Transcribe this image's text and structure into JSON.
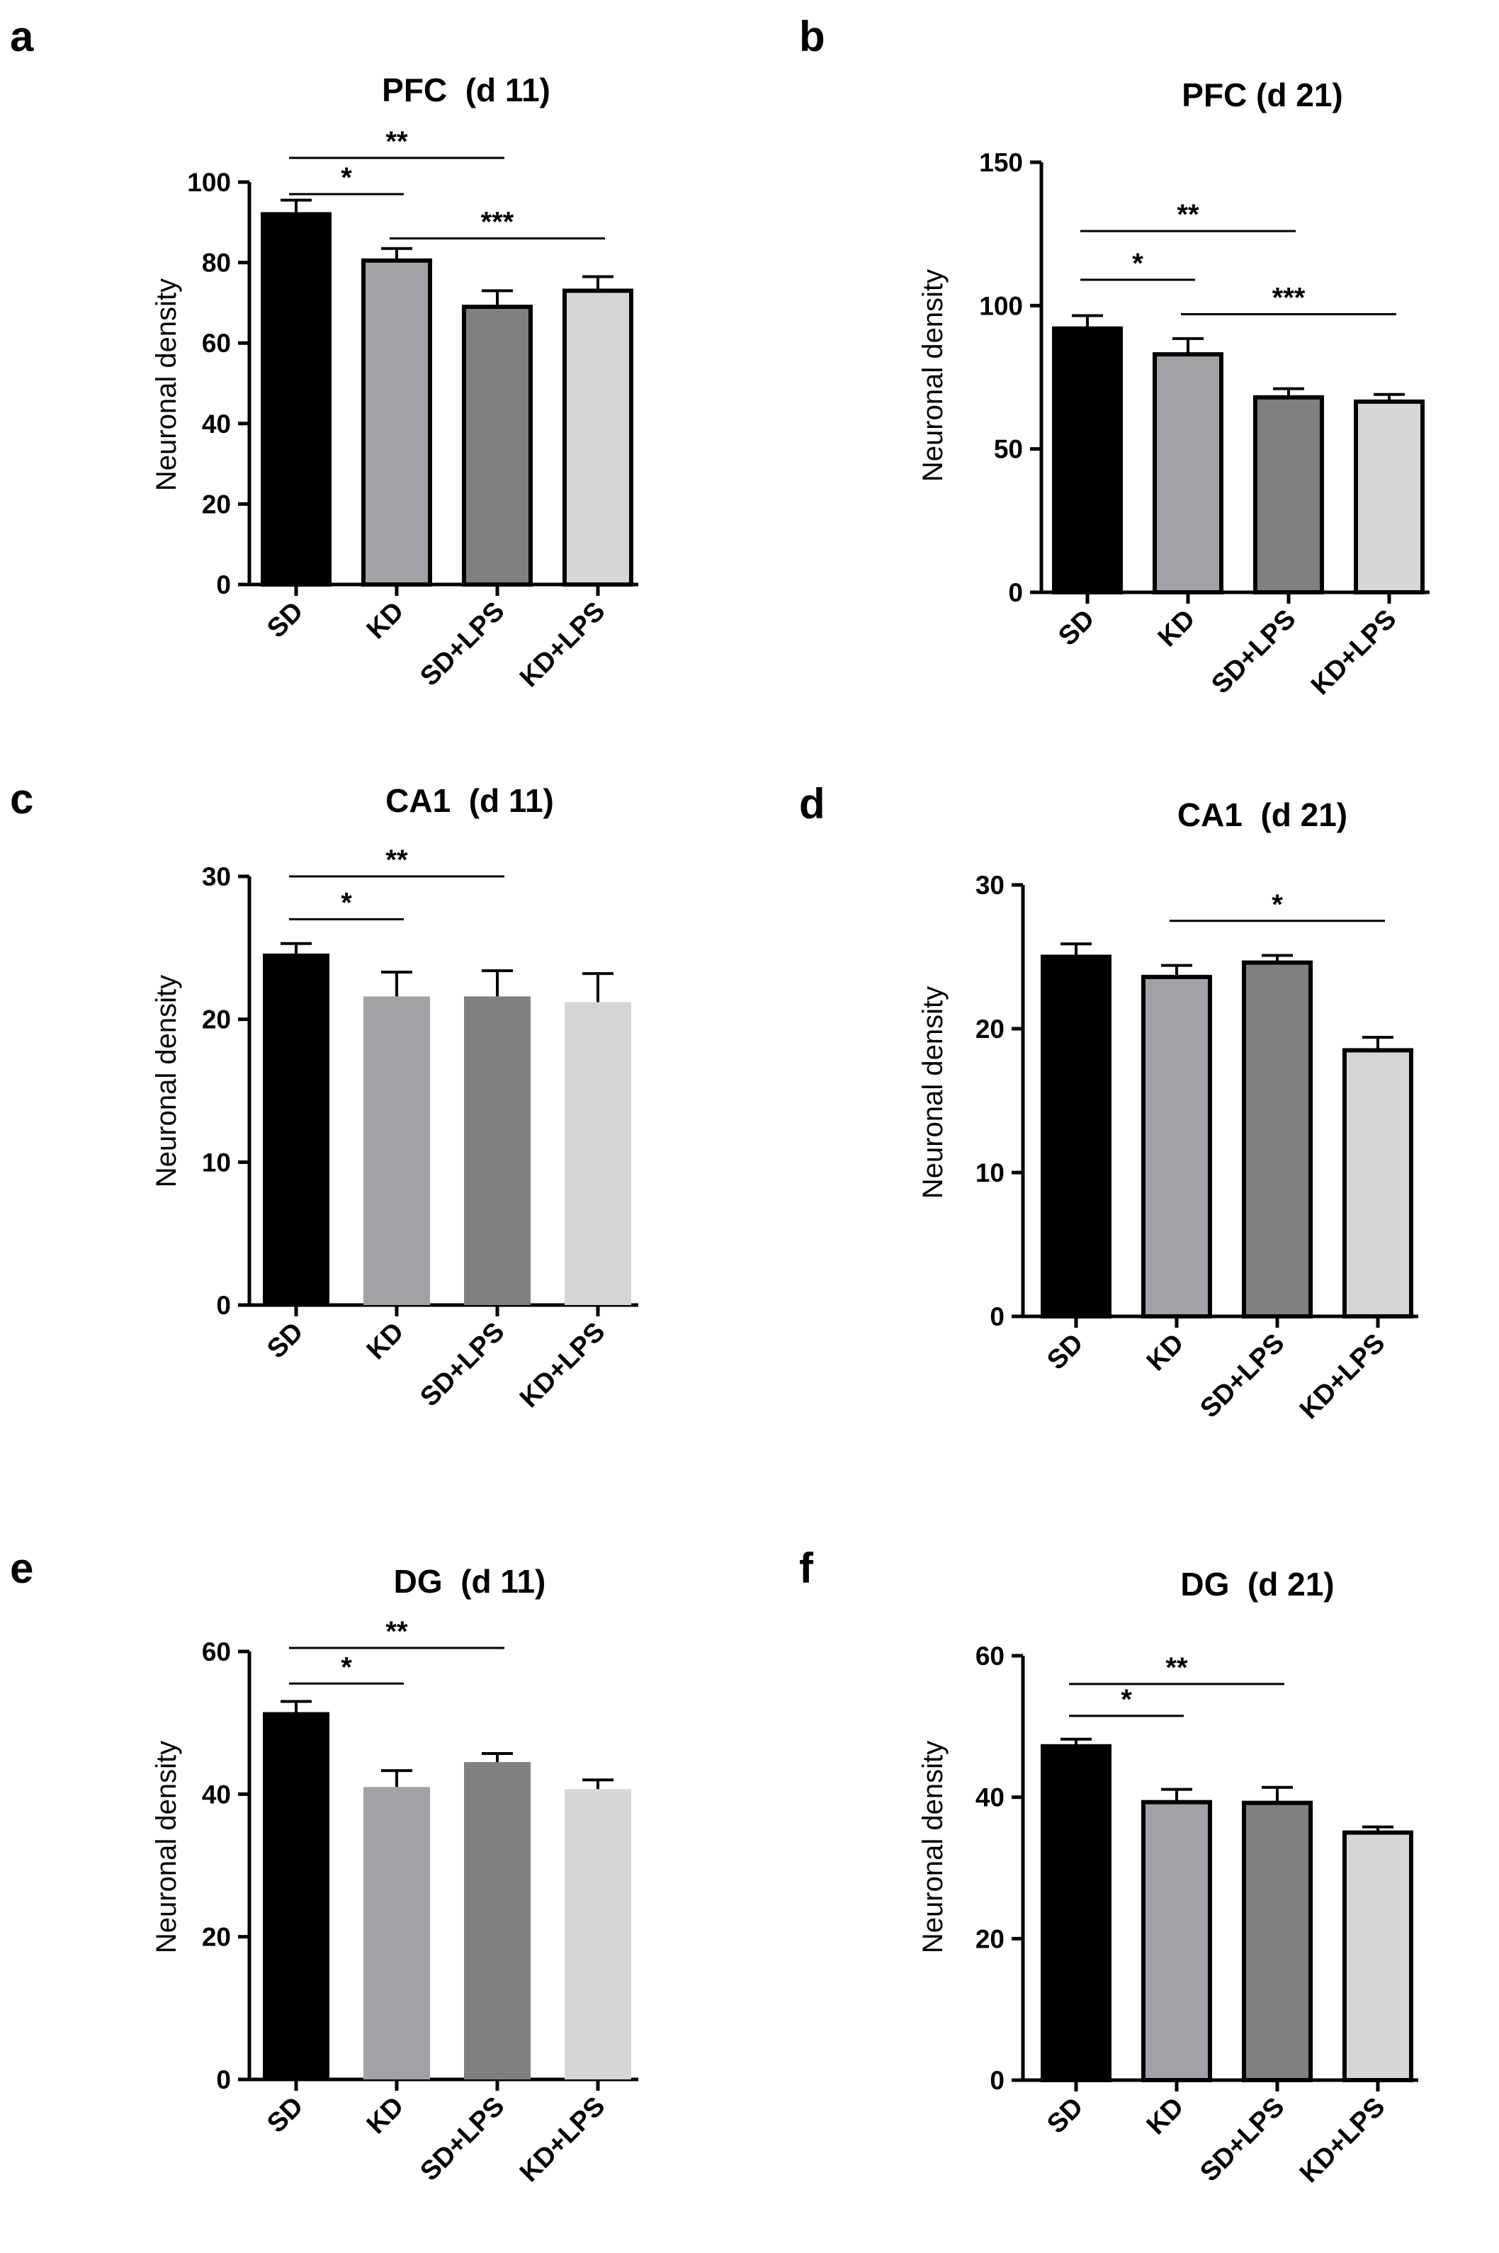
{
  "figure": {
    "panel_colors": {
      "SD": "#000000",
      "KD": "#a2a2a6",
      "SD+LPS": "#808080",
      "KD+LPS": "#d6d6d6"
    }
  },
  "chart_data": [
    {
      "panel": "a",
      "type": "bar",
      "title": "PFC  (d 11)",
      "ylabel": "Neuronal density",
      "xlabel": "",
      "categories": [
        "SD",
        "KD",
        "SD+LPS",
        "KD+LPS"
      ],
      "values": [
        92,
        80.5,
        69,
        73
      ],
      "errors": [
        3.5,
        3,
        4,
        3.5
      ],
      "ylim": [
        0,
        100
      ],
      "yticks": [
        0,
        20,
        40,
        60,
        80,
        100
      ],
      "bordered": true,
      "grid": false,
      "significance": [
        {
          "from": 0,
          "to": 1,
          "label": "*",
          "y": 97
        },
        {
          "from": 0,
          "to": 2,
          "label": "**",
          "y": 106
        },
        {
          "from": 1,
          "to": 3,
          "label": "***",
          "y": 86
        }
      ]
    },
    {
      "panel": "b",
      "type": "bar",
      "title": "PFC (d 21)",
      "ylabel": "Neuronal density",
      "xlabel": "",
      "categories": [
        "SD",
        "KD",
        "SD+LPS",
        "KD+LPS"
      ],
      "values": [
        92,
        83,
        68,
        66.5
      ],
      "errors": [
        4.5,
        5.5,
        3,
        2.5
      ],
      "ylim": [
        0,
        150
      ],
      "yticks": [
        0,
        50,
        100,
        150
      ],
      "bordered": true,
      "grid": false,
      "significance": [
        {
          "from": 0,
          "to": 1,
          "label": "*",
          "y": 109
        },
        {
          "from": 0,
          "to": 2,
          "label": "**",
          "y": 126
        },
        {
          "from": 1,
          "to": 3,
          "label": "***",
          "y": 97
        }
      ]
    },
    {
      "panel": "c",
      "type": "bar",
      "title": "CA1  (d 11)",
      "ylabel": "Neuronal density",
      "xlabel": "",
      "categories": [
        "SD",
        "KD",
        "SD+LPS",
        "KD+LPS"
      ],
      "values": [
        24.6,
        21.6,
        21.6,
        21.2
      ],
      "errors": [
        0.7,
        1.7,
        1.8,
        2
      ],
      "ylim": [
        0,
        30
      ],
      "yticks": [
        0,
        10,
        20,
        30
      ],
      "bordered": false,
      "grid": false,
      "significance": [
        {
          "from": 0,
          "to": 1,
          "label": "*",
          "y": 27
        },
        {
          "from": 0,
          "to": 2,
          "label": "**",
          "y": 30
        }
      ]
    },
    {
      "panel": "d",
      "type": "bar",
      "title": "CA1  (d 21)",
      "ylabel": "Neuronal density",
      "xlabel": "",
      "categories": [
        "SD",
        "KD",
        "SD+LPS",
        "KD+LPS"
      ],
      "values": [
        25,
        23.6,
        24.6,
        18.5
      ],
      "errors": [
        0.9,
        0.8,
        0.5,
        0.9
      ],
      "ylim": [
        0,
        30
      ],
      "yticks": [
        0,
        10,
        20,
        30
      ],
      "bordered": true,
      "grid": false,
      "significance": [
        {
          "from": 1,
          "to": 3,
          "label": "*",
          "y": 27.5
        }
      ]
    },
    {
      "panel": "e",
      "type": "bar",
      "title": "DG  (d 11)",
      "ylabel": "Neuronal density",
      "xlabel": "",
      "categories": [
        "SD",
        "KD",
        "SD+LPS",
        "KD+LPS"
      ],
      "values": [
        51.5,
        41,
        44.5,
        40.7
      ],
      "errors": [
        1.5,
        2.3,
        1.2,
        1.3
      ],
      "ylim": [
        0,
        60
      ],
      "yticks": [
        0,
        20,
        40,
        60
      ],
      "bordered": false,
      "grid": false,
      "significance": [
        {
          "from": 0,
          "to": 1,
          "label": "*",
          "y": 55.5
        },
        {
          "from": 0,
          "to": 2,
          "label": "**",
          "y": 60.5
        }
      ]
    },
    {
      "panel": "f",
      "type": "bar",
      "title": "DG  (d 21)",
      "ylabel": "Neuronal density",
      "xlabel": "",
      "categories": [
        "SD",
        "KD",
        "SD+LPS",
        "KD+LPS"
      ],
      "values": [
        47.2,
        39.3,
        39.2,
        35
      ],
      "errors": [
        1,
        1.8,
        2.2,
        0.8
      ],
      "ylim": [
        0,
        60
      ],
      "yticks": [
        0,
        20,
        40,
        60
      ],
      "bordered": true,
      "grid": false,
      "significance": [
        {
          "from": 0,
          "to": 1,
          "label": "*",
          "y": 51.5
        },
        {
          "from": 0,
          "to": 2,
          "label": "**",
          "y": 56
        }
      ]
    }
  ]
}
